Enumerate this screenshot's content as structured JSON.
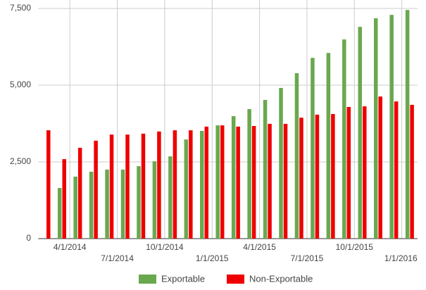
{
  "chart_data": {
    "type": "bar",
    "categories": [
      null,
      null,
      "4/1/2014",
      null,
      null,
      "7/1/2014",
      null,
      null,
      "10/1/2014",
      null,
      null,
      "1/1/2015",
      null,
      null,
      "4/1/2015",
      null,
      null,
      "7/1/2015",
      null,
      null,
      "10/1/2015",
      null,
      null,
      "1/1/2016"
    ],
    "series": [
      {
        "name": "Exportable",
        "color": "#6aa84f",
        "values": [
          null,
          1650,
          2020,
          2180,
          2250,
          2250,
          2360,
          2520,
          2680,
          3230,
          3510,
          3690,
          3990,
          4220,
          4520,
          4910,
          5390,
          5890,
          6050,
          6490,
          6900,
          7180,
          7290,
          7450
        ]
      },
      {
        "name": "Non-Exportable",
        "color": "#ee0000",
        "values": [
          3530,
          2590,
          2960,
          3190,
          3390,
          3390,
          3420,
          3490,
          3530,
          3530,
          3650,
          3690,
          3650,
          3670,
          3740,
          3740,
          3940,
          4040,
          4060,
          4290,
          4310,
          4630,
          4470,
          4360
        ]
      }
    ],
    "ylim": [
      0,
      7500
    ],
    "yticks": [
      0,
      {
        "value": 2500,
        "label": "2,500"
      },
      {
        "value": 5000,
        "label": "5,000"
      },
      {
        "value": 7500,
        "label": "7,500"
      }
    ],
    "grid": true,
    "legend": "bottom"
  }
}
